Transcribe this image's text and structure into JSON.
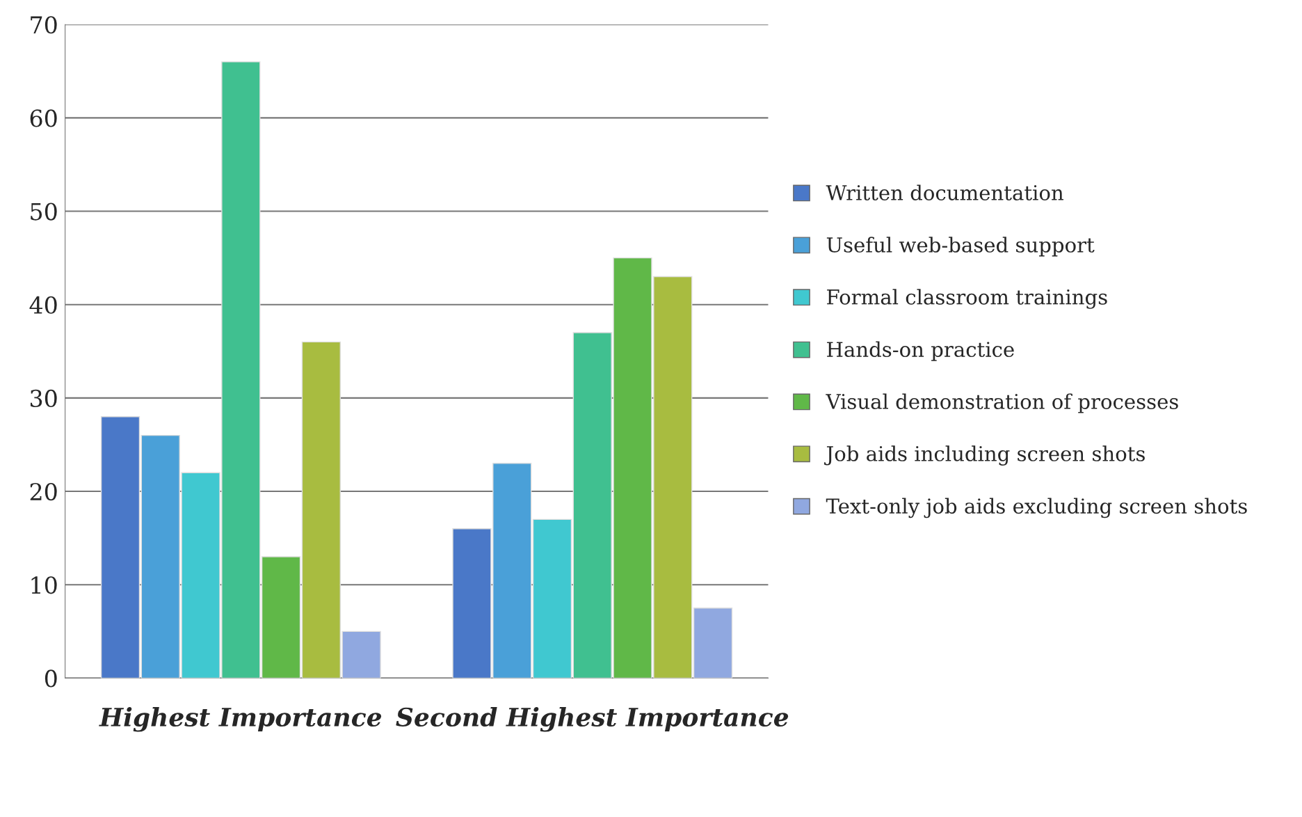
{
  "chart_data": {
    "type": "bar",
    "categories": [
      "Highest Importance",
      "Second Highest Importance"
    ],
    "series": [
      {
        "name": "Written documentation",
        "color": "#4a78c8",
        "values": [
          28,
          16
        ]
      },
      {
        "name": "Useful web-based support",
        "color": "#4aa0d8",
        "values": [
          26,
          23
        ]
      },
      {
        "name": "Formal classroom trainings",
        "color": "#40c8d0",
        "values": [
          22,
          17
        ]
      },
      {
        "name": "Hands-on practice",
        "color": "#40c090",
        "values": [
          66,
          37
        ]
      },
      {
        "name": "Visual demonstration of processes",
        "color": "#60b848",
        "values": [
          13,
          45
        ]
      },
      {
        "name": "Job aids including screen shots",
        "color": "#a8bc40",
        "values": [
          36,
          43
        ]
      },
      {
        "name": "Text-only job aids excluding screen shots",
        "color": "#90a8e0",
        "values": [
          5,
          7.5
        ]
      }
    ],
    "ylim": [
      0,
      70
    ],
    "yticks": [
      0,
      10,
      20,
      30,
      40,
      50,
      60,
      70
    ],
    "grid": "y",
    "legend": "right"
  }
}
